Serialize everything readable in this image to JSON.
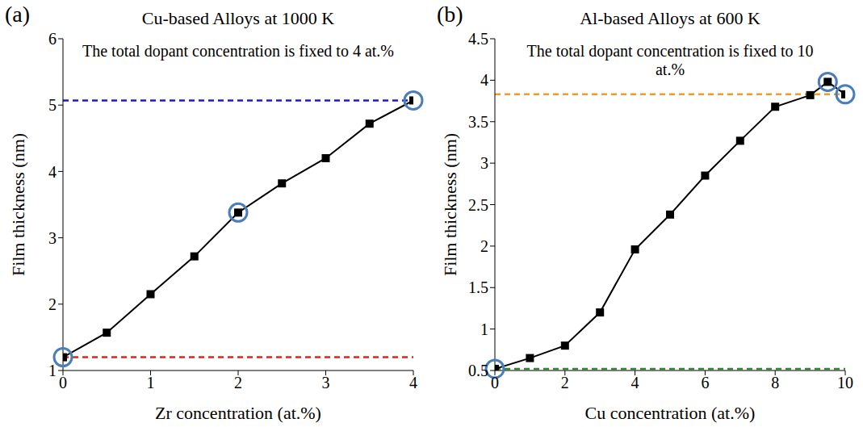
{
  "chart_data": [
    {
      "type": "line",
      "panel_label": "(a)",
      "title": "Cu-based Alloys at 1000 K",
      "annotation": "The total dopant concentration is fixed to 4 at.%",
      "x_label": "Zr concentration (at.%)",
      "y_label": "Film thickness (nm)",
      "x": [
        0,
        0.5,
        1,
        1.5,
        2,
        2.5,
        3,
        3.5,
        4
      ],
      "series": [
        {
          "color": "#000000",
          "marker": "square",
          "line_style": "solid",
          "values": [
            1.2,
            1.57,
            2.15,
            2.72,
            3.38,
            3.82,
            4.2,
            4.72,
            5.07
          ],
          "circled_x": [
            0,
            2,
            4
          ]
        }
      ],
      "reference_lines": [
        {
          "value": 5.07,
          "color": "#1a1ad6",
          "line_style": "dashed"
        },
        {
          "value": 1.2,
          "color": "#e8201c",
          "line_style": "dashed"
        }
      ],
      "xlim": [
        0,
        4
      ],
      "xticks": [
        0,
        1,
        2,
        3,
        4
      ],
      "ylim": [
        1,
        6
      ],
      "yticks": [
        1,
        2,
        3,
        4,
        5,
        6
      ]
    },
    {
      "type": "line",
      "panel_label": "(b)",
      "title": "Al-based Alloys at 600 K",
      "annotation": "The total dopant concentration is fixed to 10 at.%",
      "x_label": "Cu concentration (at.%)",
      "y_label": "Film thickness (nm)",
      "x": [
        0,
        1,
        2,
        3,
        4,
        5,
        6,
        7,
        8,
        9,
        9.5,
        10
      ],
      "series": [
        {
          "color": "#000000",
          "marker": "square",
          "line_style": "solid",
          "values": [
            0.52,
            0.65,
            0.8,
            1.2,
            1.96,
            2.38,
            2.85,
            3.27,
            3.68,
            3.82,
            3.98,
            3.83
          ],
          "circled_x": [
            0,
            9.5,
            10
          ]
        }
      ],
      "reference_lines": [
        {
          "value": 3.83,
          "color": "#f39a2b",
          "line_style": "dashed"
        },
        {
          "value": 0.52,
          "color": "#2e8b2e",
          "line_style": "dashed"
        }
      ],
      "xlim": [
        0,
        10
      ],
      "xticks": [
        0,
        2,
        4,
        6,
        8,
        10
      ],
      "ylim": [
        0.5,
        4.5
      ],
      "yticks": [
        0.5,
        1,
        1.5,
        2,
        2.5,
        3,
        3.5,
        4,
        4.5
      ]
    }
  ]
}
